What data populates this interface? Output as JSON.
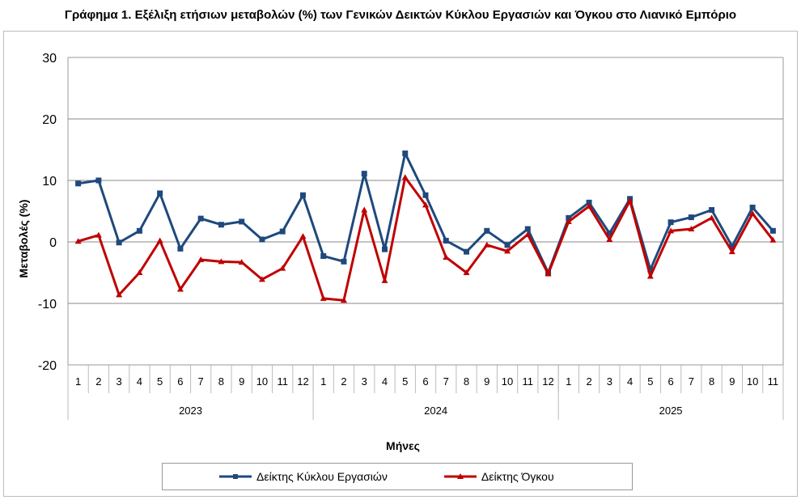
{
  "chart_data": {
    "type": "line",
    "title": "Γράφημα 1. Εξέλιξη ετήσιων μεταβολών (%) των Γενικών Δεικτών Κύκλου Εργασιών και Όγκου στο Λιανικό Εμπόριο",
    "xlabel": "Μήνες",
    "ylabel": "Μεταβολές  (%)",
    "ylim": [
      -20,
      30
    ],
    "yticks": [
      30,
      20,
      10,
      0,
      -10,
      -20
    ],
    "grid": true,
    "legend_position": "bottom",
    "years": [
      {
        "label": "2023",
        "months": 12
      },
      {
        "label": "2024",
        "months": 12
      },
      {
        "label": "2025",
        "months": 11
      }
    ],
    "categories": [
      "1",
      "2",
      "3",
      "4",
      "5",
      "6",
      "7",
      "8",
      "9",
      "10",
      "11",
      "12",
      "1",
      "2",
      "3",
      "4",
      "5",
      "6",
      "7",
      "8",
      "9",
      "10",
      "11",
      "12",
      "1",
      "2",
      "3",
      "4",
      "5",
      "6",
      "7",
      "8",
      "9",
      "10",
      "11"
    ],
    "series": [
      {
        "name": "Δείκτης Κύκλου Εργασιών",
        "color": "#1f497d",
        "marker": "square",
        "values": [
          9.5,
          10.0,
          -0.1,
          1.8,
          7.9,
          -1.1,
          3.8,
          2.8,
          3.3,
          0.4,
          1.7,
          7.6,
          -2.3,
          -3.2,
          11.1,
          -1.2,
          14.4,
          7.6,
          0.2,
          -1.6,
          1.8,
          -0.5,
          2.1,
          -5.0,
          3.9,
          6.4,
          1.4,
          7.0,
          -4.5,
          3.2,
          4.0,
          5.2,
          -0.7,
          5.6,
          1.8
        ]
      },
      {
        "name": "Δείκτης Όγκου",
        "color": "#c00000",
        "marker": "triangle",
        "values": [
          0.1,
          1.1,
          -8.6,
          -5.0,
          0.2,
          -7.7,
          -2.9,
          -3.2,
          -3.3,
          -6.1,
          -4.3,
          0.9,
          -9.2,
          -9.5,
          5.2,
          -6.3,
          10.5,
          6.0,
          -2.5,
          -5.0,
          -0.5,
          -1.5,
          1.2,
          -5.2,
          3.3,
          5.8,
          0.4,
          6.7,
          -5.6,
          1.8,
          2.1,
          3.9,
          -1.6,
          4.6,
          0.3
        ]
      }
    ]
  }
}
